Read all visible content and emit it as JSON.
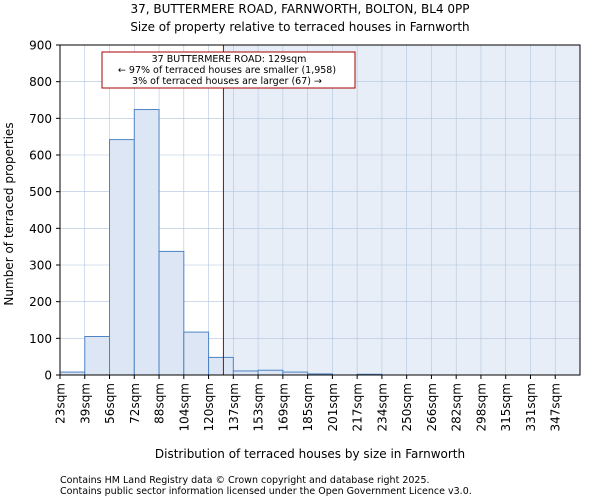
{
  "chart_data": {
    "type": "bar",
    "title": "37, BUTTERMERE ROAD, FARNWORTH, BOLTON, BL4 0PP",
    "subtitle": "Size of property relative to terraced houses in Farnworth",
    "xlabel": "Distribution of terraced houses by size in Farnworth",
    "ylabel": "Number of terraced properties",
    "ylim": [
      0,
      900
    ],
    "yticks": [
      0,
      100,
      200,
      300,
      400,
      500,
      600,
      700,
      800,
      900
    ],
    "categories": [
      "23sqm",
      "39sqm",
      "56sqm",
      "72sqm",
      "88sqm",
      "104sqm",
      "120sqm",
      "137sqm",
      "153sqm",
      "169sqm",
      "185sqm",
      "201sqm",
      "217sqm",
      "234sqm",
      "250sqm",
      "266sqm",
      "282sqm",
      "298sqm",
      "315sqm",
      "331sqm",
      "347sqm"
    ],
    "values": [
      8,
      105,
      642,
      724,
      337,
      117,
      48,
      11,
      13,
      8,
      3,
      0,
      2,
      0,
      0,
      0,
      0,
      0,
      0,
      0,
      0
    ],
    "marker_bin_position": 6.6,
    "colors": {
      "bar_fill": "#dce6f4",
      "bar_stroke": "#4e84c4",
      "marker": "#aa0000",
      "shade": "#e8eef7",
      "grid": "#b0c4de"
    },
    "annotation": {
      "line1": "37 BUTTERMERE ROAD: 129sqm",
      "line2": "← 97% of terraced houses are smaller (1,958)",
      "line3": "3% of terraced houses are larger (67) →"
    }
  },
  "footer": {
    "line1": "Contains HM Land Registry data © Crown copyright and database right 2025.",
    "line2": "Contains public sector information licensed under the Open Government Licence v3.0."
  }
}
